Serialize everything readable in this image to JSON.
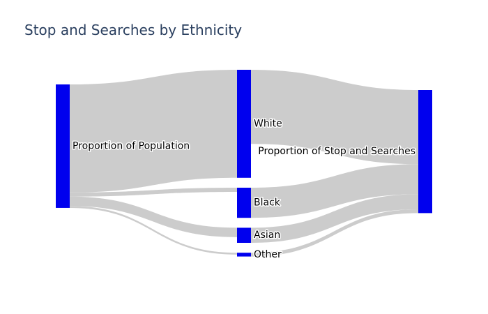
{
  "chart_data": {
    "type": "sankey",
    "title": "Stop and Searches by Ethnicity",
    "node_color": "#0000ee",
    "link_color": "#cccccc",
    "nodes": [
      {
        "id": "pop",
        "label": "Proportion of Population",
        "column": 0
      },
      {
        "id": "white",
        "label": "White",
        "column": 1
      },
      {
        "id": "black",
        "label": "Black",
        "column": 1
      },
      {
        "id": "asian",
        "label": "Asian",
        "column": 1
      },
      {
        "id": "other",
        "label": "Other",
        "column": 1
      },
      {
        "id": "sas",
        "label": "Proportion of Stop and Searches",
        "column": 2
      }
    ],
    "links": [
      {
        "source": "pop",
        "target": "white",
        "value": 86
      },
      {
        "source": "pop",
        "target": "black",
        "value": 3.3
      },
      {
        "source": "pop",
        "target": "asian",
        "value": 7.5
      },
      {
        "source": "pop",
        "target": "other",
        "value": 1.5
      },
      {
        "source": "white",
        "target": "sas",
        "value": 59
      },
      {
        "source": "black",
        "target": "sas",
        "value": 24
      },
      {
        "source": "asian",
        "target": "sas",
        "value": 12
      },
      {
        "source": "other",
        "target": "sas",
        "value": 3
      }
    ]
  }
}
